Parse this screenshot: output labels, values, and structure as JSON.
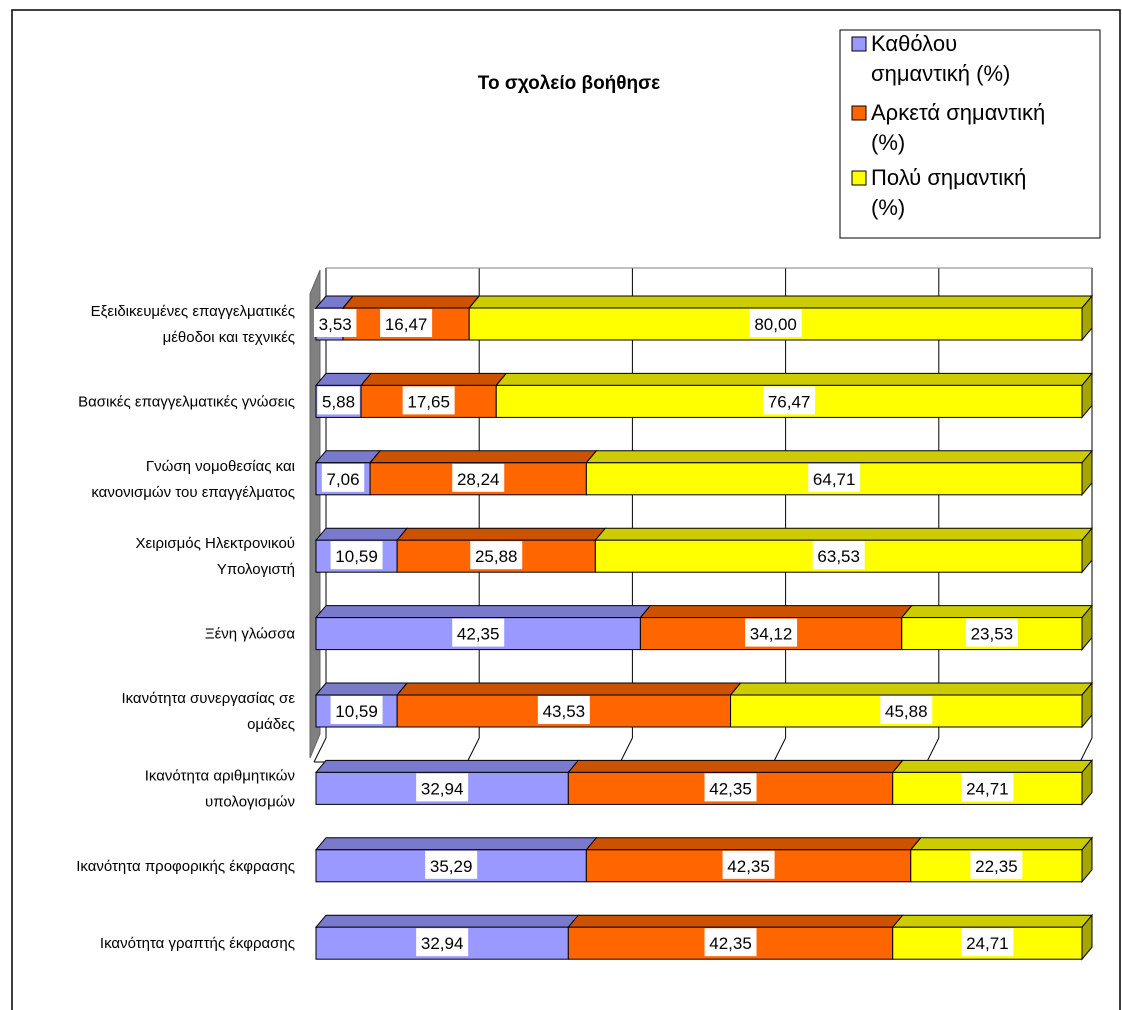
{
  "chart_data": {
    "type": "bar",
    "orientation": "horizontal",
    "stacked": "percent",
    "title": "Το σχολείο βοήθησε",
    "categories": [
      [
        "Εξειδικευμένες επαγγελματικές",
        "μέθοδοι και τεχνικές"
      ],
      [
        "Βασικές επαγγελματικές γνώσεις"
      ],
      [
        "Γνώση νομοθεσίας και",
        "κανονισμών του επαγγέλματος"
      ],
      [
        "Χειρισμός Ηλεκτρονικού",
        "Υπολογιστή"
      ],
      [
        "Ξένη γλώσσα"
      ],
      [
        "Ικανότητα συνεργασίας σε",
        "ομάδες"
      ],
      [
        "Ικανότητα αριθμητικών",
        "υπολογισμών"
      ],
      [
        "Ικανότητα προφορικής έκφρασης"
      ],
      [
        "Ικανότητα γραπτής έκφρασης"
      ]
    ],
    "series": [
      {
        "name": [
          "Καθόλου",
          "σημαντική  (%)"
        ],
        "color": "#9999ff",
        "labels": [
          "3,53",
          "5,88",
          "7,06",
          "10,59",
          "42,35",
          "10,59",
          "32,94",
          "35,29",
          "32,94"
        ],
        "values": [
          3.53,
          5.88,
          7.06,
          10.59,
          42.35,
          10.59,
          32.94,
          35.29,
          32.94
        ]
      },
      {
        "name": [
          "Αρκετά σημαντική",
          "(%)"
        ],
        "color": "#ff6600",
        "labels": [
          "16,47",
          "17,65",
          "28,24",
          "25,88",
          "34,12",
          "43,53",
          "42,35",
          "42,35",
          "42,35"
        ],
        "values": [
          16.47,
          17.65,
          28.24,
          25.88,
          34.12,
          43.53,
          42.35,
          42.35,
          42.35
        ]
      },
      {
        "name": [
          "Πολύ σημαντική",
          "(%)"
        ],
        "color": "#ffff00",
        "labels": [
          "80,00",
          "76,47",
          "64,71",
          "63,53",
          "23,53",
          "45,88",
          "24,71",
          "22,35",
          "24,71"
        ],
        "values": [
          80.0,
          76.47,
          64.71,
          63.53,
          23.53,
          45.88,
          24.71,
          22.35,
          24.71
        ]
      }
    ],
    "xlim": [
      0,
      100
    ],
    "grid": true,
    "legend_position": "top-right",
    "projection": "3d"
  }
}
